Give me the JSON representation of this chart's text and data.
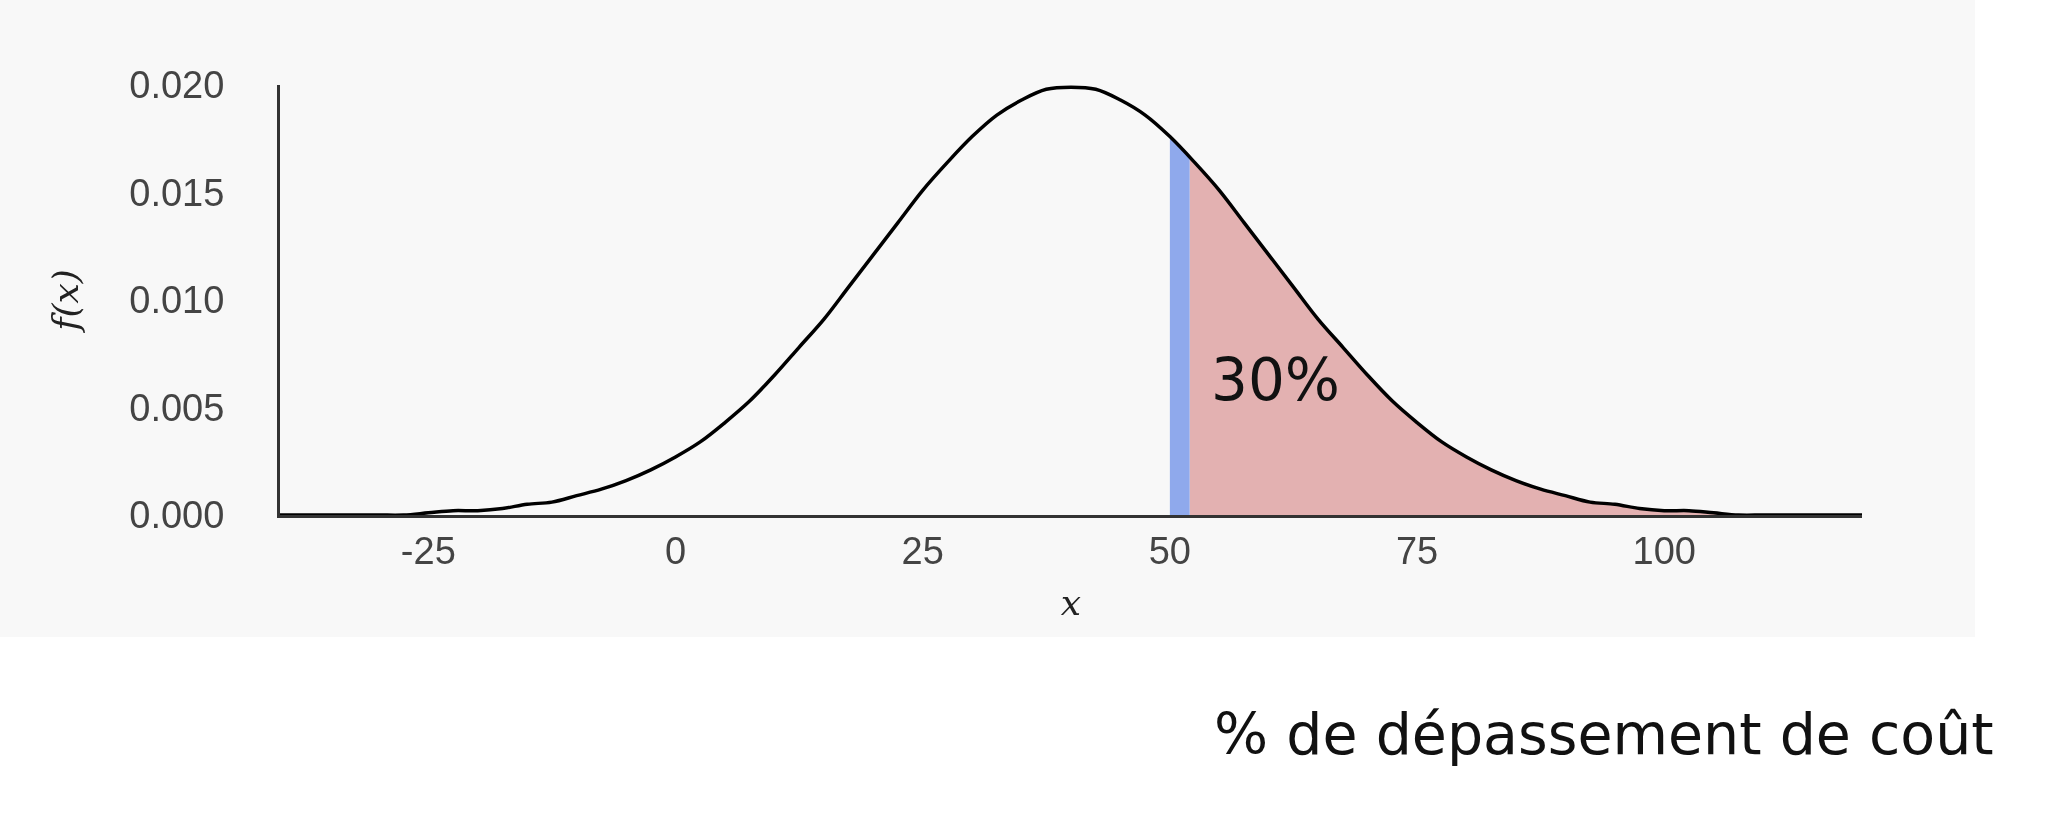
{
  "chart_data": {
    "type": "line",
    "xlabel": "x",
    "ylabel": "f(x)",
    "xlim": [
      -40,
      120
    ],
    "xticks": [
      -25,
      0,
      25,
      50,
      75,
      100
    ],
    "ylim": [
      0,
      0.02
    ],
    "yticks": [
      {
        "value": 0,
        "label": "0.000"
      },
      {
        "value": 0.005,
        "label": "0.005"
      },
      {
        "value": 0.01,
        "label": "0.010"
      },
      {
        "value": 0.015,
        "label": "0.015"
      },
      {
        "value": 0.02,
        "label": "0.020"
      }
    ],
    "grid": false,
    "series": [
      {
        "type": "area",
        "color": "#e3b1b1",
        "x": [
          52,
          55,
          57.5,
          60,
          62.5,
          65,
          67.5,
          70,
          72.5,
          75,
          77.5,
          80,
          82.5,
          85,
          87.5,
          90,
          92.5,
          95,
          97.5,
          100,
          102.5,
          105,
          107.5,
          110,
          112.5,
          115,
          117.5,
          120
        ],
        "values": [
          0.0167,
          0.0151,
          0.0136,
          0.0121,
          0.0106,
          0.0091,
          0.0078,
          0.0065,
          0.0053,
          0.0043,
          0.0034,
          0.0027,
          0.0021,
          0.0016,
          0.0012,
          0.0009,
          0.0006,
          0.0005,
          0.0003,
          0.0002,
          0.0002,
          0.0001,
          0,
          0,
          0,
          0,
          0,
          0
        ]
      },
      {
        "type": "area",
        "color": "#8fa9ec",
        "x": [
          50,
          52
        ],
        "values": [
          0.0176,
          0.0167
        ]
      },
      {
        "color": "#000000",
        "x": [
          -40,
          -37.5,
          -35,
          -32.5,
          -30,
          -27.5,
          -25,
          -22.5,
          -20,
          -17.5,
          -15,
          -12.5,
          -10,
          -7.5,
          -5,
          -2.5,
          0,
          2.5,
          5,
          7.5,
          10,
          12.5,
          15,
          17.5,
          20,
          22.5,
          25,
          27.5,
          30,
          32.5,
          35,
          37.5,
          40,
          42.5,
          45,
          47.5,
          50,
          52.5,
          55,
          57.5,
          60,
          62.5,
          65,
          67.5,
          70,
          72.5,
          75,
          77.5,
          80,
          82.5,
          85,
          87.5,
          90,
          92.5,
          95,
          97.5,
          100,
          102.5,
          105,
          107.5,
          110,
          112.5,
          115,
          117.5,
          120
        ],
        "values": [
          0,
          0,
          0,
          0,
          0,
          0,
          0.0001,
          0.0002,
          0.0002,
          0.0003,
          0.0005,
          0.0006,
          0.0009,
          0.0012,
          0.0016,
          0.0021,
          0.0027,
          0.0034,
          0.0043,
          0.0053,
          0.0065,
          0.0078,
          0.0091,
          0.0106,
          0.0121,
          0.0136,
          0.0151,
          0.0164,
          0.0176,
          0.0186,
          0.0193,
          0.0198,
          0.0199,
          0.0198,
          0.0193,
          0.0186,
          0.0176,
          0.0164,
          0.0151,
          0.0136,
          0.0121,
          0.0106,
          0.0091,
          0.0078,
          0.0065,
          0.0053,
          0.0043,
          0.0034,
          0.0027,
          0.0021,
          0.0016,
          0.0012,
          0.0009,
          0.0006,
          0.0005,
          0.0003,
          0.0002,
          0.0002,
          0.0001,
          0,
          0,
          0,
          0,
          0,
          0
        ]
      }
    ],
    "annotations": [
      "30%",
      "% de dépassement de coût"
    ]
  }
}
